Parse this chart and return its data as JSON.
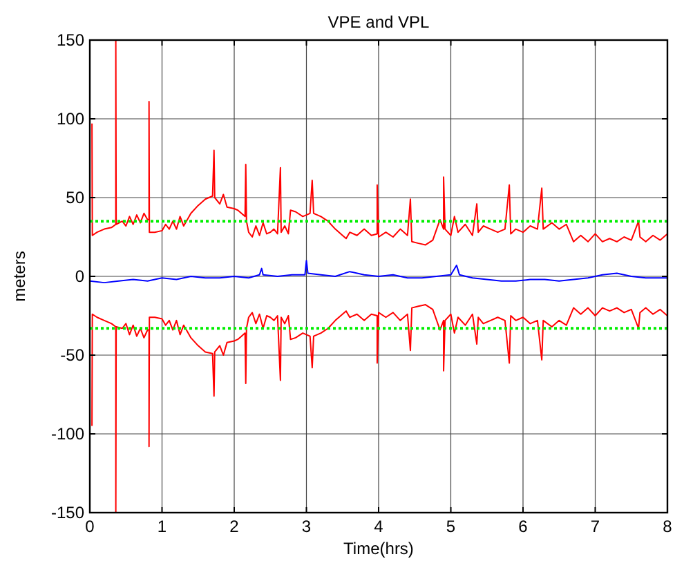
{
  "chart_data": {
    "type": "line",
    "title": "VPE and VPL",
    "xlabel": "Time(hrs)",
    "ylabel": "meters",
    "xlim": [
      0,
      8
    ],
    "xticks": [
      0,
      1,
      2,
      3,
      4,
      5,
      6,
      7,
      8
    ],
    "ylim": [
      -150,
      150
    ],
    "yticks": [
      -150,
      -100,
      -50,
      0,
      50,
      100,
      150
    ],
    "grid": true,
    "marker": "none",
    "line_style": "solid",
    "series": [
      {
        "color": "#ff0000",
        "x": [
          0.03,
          0.035,
          0.1,
          0.2,
          0.3,
          0.36,
          0.36,
          0.365,
          0.45,
          0.5,
          0.55,
          0.6,
          0.65,
          0.7,
          0.75,
          0.8,
          0.82,
          0.82,
          0.825,
          0.9,
          1.0,
          1.05,
          1.1,
          1.15,
          1.2,
          1.25,
          1.3,
          1.35,
          1.4,
          1.5,
          1.6,
          1.7,
          1.72,
          1.73,
          1.8,
          1.85,
          1.9,
          2.0,
          2.05,
          2.1,
          2.15,
          2.16,
          2.17,
          2.2,
          2.25,
          2.3,
          2.35,
          2.4,
          2.45,
          2.5,
          2.55,
          2.6,
          2.64,
          2.65,
          2.7,
          2.75,
          2.78,
          2.85,
          2.95,
          3.05,
          3.08,
          3.1,
          3.2,
          3.3,
          3.4,
          3.5,
          3.55,
          3.6,
          3.7,
          3.8,
          3.9,
          3.98,
          3.98,
          4.0,
          4.1,
          4.2,
          4.3,
          4.4,
          4.44,
          4.46,
          4.55,
          4.65,
          4.75,
          4.85,
          4.9,
          4.9,
          4.92,
          5.0,
          5.05,
          5.1,
          5.2,
          5.3,
          5.36,
          5.38,
          5.45,
          5.55,
          5.65,
          5.75,
          5.81,
          5.83,
          5.9,
          6.0,
          6.1,
          6.2,
          6.26,
          6.28,
          6.4,
          6.5,
          6.6,
          6.7,
          6.8,
          6.9,
          7.0,
          7.1,
          7.2,
          7.3,
          7.4,
          7.5,
          7.6,
          7.62,
          7.7,
          7.8,
          7.9,
          8.0
        ],
        "values": [
          97,
          26,
          28,
          30,
          31,
          33,
          150,
          33,
          35,
          32,
          38,
          33,
          39,
          34,
          40,
          36,
          36,
          111,
          28,
          28,
          29,
          33,
          30,
          35,
          30,
          38,
          32,
          36,
          40,
          45,
          49,
          51,
          80,
          50,
          46,
          52,
          44,
          43,
          42,
          40,
          38,
          71,
          35,
          28,
          25,
          32,
          26,
          34,
          27,
          28,
          30,
          27,
          69,
          28,
          32,
          27,
          42,
          41,
          38,
          40,
          61,
          40,
          38,
          35,
          30,
          26,
          24,
          28,
          26,
          30,
          26,
          27,
          58,
          25,
          28,
          25,
          30,
          26,
          49,
          22,
          21,
          20,
          23,
          36,
          30,
          63,
          30,
          26,
          38,
          28,
          33,
          26,
          46,
          28,
          32,
          30,
          28,
          30,
          58,
          27,
          30,
          28,
          32,
          30,
          56,
          30,
          34,
          30,
          33,
          22,
          26,
          22,
          27,
          22,
          24,
          22,
          25,
          23,
          35,
          25,
          22,
          26,
          23,
          27
        ]
      },
      {
        "color": "#0000ff",
        "x": [
          0,
          0.2,
          0.4,
          0.6,
          0.8,
          1.0,
          1.2,
          1.4,
          1.6,
          1.8,
          2.0,
          2.2,
          2.35,
          2.38,
          2.4,
          2.6,
          2.8,
          2.98,
          3.0,
          3.02,
          3.2,
          3.4,
          3.6,
          3.8,
          4.0,
          4.2,
          4.4,
          4.6,
          4.8,
          5.0,
          5.08,
          5.1,
          5.12,
          5.3,
          5.5,
          5.7,
          5.9,
          6.1,
          6.3,
          6.5,
          6.7,
          6.9,
          7.1,
          7.3,
          7.5,
          7.7,
          7.9,
          8.0
        ],
        "values": [
          -3,
          -4,
          -3,
          -2,
          -3,
          -1,
          -2,
          0,
          -1,
          -1,
          0,
          -1,
          1,
          5,
          1,
          0,
          1,
          1,
          10,
          2,
          1,
          0,
          3,
          1,
          0,
          1,
          -1,
          -1,
          0,
          1,
          7,
          4,
          1,
          -1,
          -2,
          -3,
          -3,
          -2,
          -2,
          -3,
          -2,
          -1,
          1,
          2,
          0,
          -1,
          -1,
          -1
        ]
      },
      {
        "color": "#ff0000",
        "x": [
          0.03,
          0.035,
          0.1,
          0.2,
          0.3,
          0.36,
          0.36,
          0.365,
          0.45,
          0.5,
          0.55,
          0.6,
          0.65,
          0.7,
          0.75,
          0.8,
          0.82,
          0.82,
          0.825,
          0.9,
          1.0,
          1.05,
          1.1,
          1.15,
          1.2,
          1.25,
          1.3,
          1.35,
          1.4,
          1.5,
          1.6,
          1.7,
          1.72,
          1.73,
          1.8,
          1.85,
          1.9,
          2.0,
          2.05,
          2.1,
          2.15,
          2.16,
          2.17,
          2.2,
          2.25,
          2.3,
          2.35,
          2.4,
          2.45,
          2.5,
          2.55,
          2.6,
          2.64,
          2.65,
          2.7,
          2.75,
          2.78,
          2.85,
          2.95,
          3.05,
          3.08,
          3.1,
          3.2,
          3.3,
          3.4,
          3.5,
          3.55,
          3.6,
          3.7,
          3.8,
          3.9,
          3.98,
          3.98,
          4.0,
          4.1,
          4.2,
          4.3,
          4.4,
          4.44,
          4.46,
          4.55,
          4.65,
          4.75,
          4.85,
          4.9,
          4.9,
          4.92,
          5.0,
          5.05,
          5.1,
          5.2,
          5.3,
          5.36,
          5.38,
          5.45,
          5.55,
          5.65,
          5.75,
          5.81,
          5.83,
          5.9,
          6.0,
          6.1,
          6.2,
          6.26,
          6.28,
          6.4,
          6.5,
          6.6,
          6.7,
          6.8,
          6.9,
          7.0,
          7.1,
          7.2,
          7.3,
          7.4,
          7.5,
          7.6,
          7.62,
          7.7,
          7.8,
          7.9,
          8.0
        ],
        "values": [
          -95,
          -24,
          -26,
          -28,
          -30,
          -32,
          -150,
          -32,
          -33,
          -30,
          -37,
          -31,
          -38,
          -33,
          -39,
          -34,
          -34,
          -108,
          -26,
          -26,
          -27,
          -31,
          -28,
          -34,
          -28,
          -37,
          -31,
          -35,
          -39,
          -44,
          -48,
          -49,
          -76,
          -48,
          -44,
          -50,
          -42,
          -41,
          -40,
          -38,
          -36,
          -68,
          -33,
          -26,
          -23,
          -30,
          -24,
          -33,
          -25,
          -26,
          -28,
          -25,
          -66,
          -26,
          -30,
          -25,
          -40,
          -39,
          -36,
          -38,
          -58,
          -38,
          -36,
          -33,
          -28,
          -24,
          -22,
          -26,
          -24,
          -28,
          -24,
          -25,
          -55,
          -23,
          -26,
          -23,
          -28,
          -24,
          -47,
          -20,
          -19,
          -18,
          -21,
          -34,
          -28,
          -60,
          -28,
          -24,
          -36,
          -26,
          -31,
          -24,
          -43,
          -26,
          -30,
          -28,
          -26,
          -28,
          -55,
          -25,
          -28,
          -26,
          -30,
          -28,
          -53,
          -28,
          -32,
          -28,
          -31,
          -20,
          -24,
          -20,
          -25,
          -20,
          -22,
          -20,
          -23,
          -21,
          -33,
          -23,
          -20,
          -24,
          -21,
          -25
        ]
      }
    ],
    "ref_lines": [
      {
        "axis": "y",
        "value": 35,
        "color": "#00ee00",
        "line_style": "dotted"
      },
      {
        "axis": "y",
        "value": -33,
        "color": "#00ee00",
        "line_style": "dotted"
      }
    ]
  }
}
